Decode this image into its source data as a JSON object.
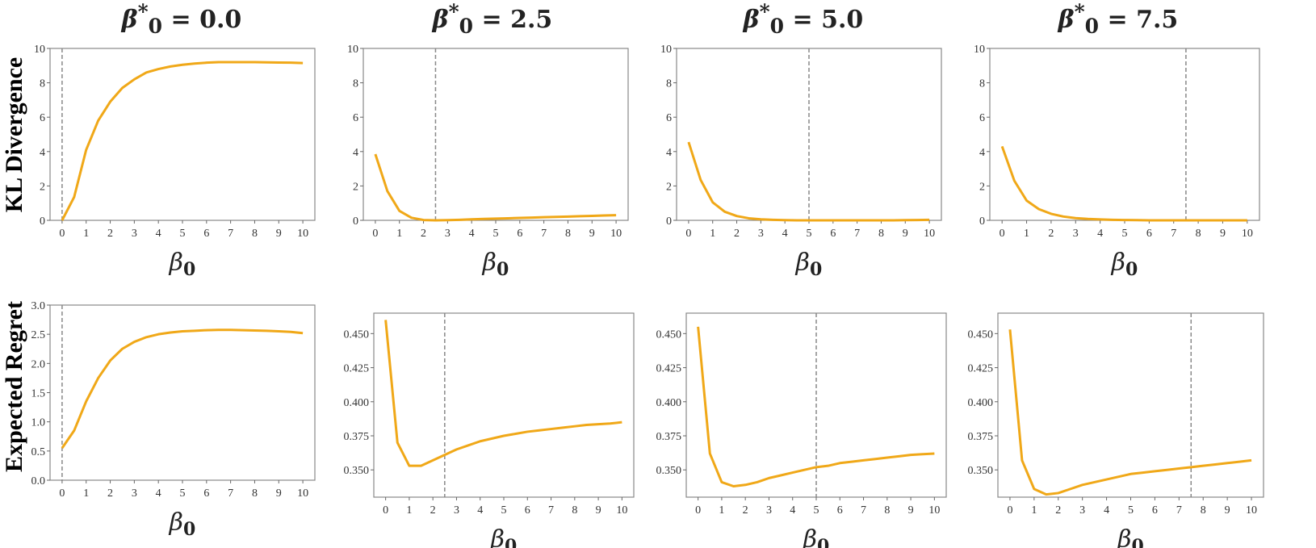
{
  "columns": [
    {
      "title_symbol": "β",
      "title_sub": "0",
      "title_sup": "*",
      "title_value": "= 0.0"
    },
    {
      "title_symbol": "β",
      "title_sub": "0",
      "title_sup": "*",
      "title_value": "= 2.5"
    },
    {
      "title_symbol": "β",
      "title_sub": "0",
      "title_sup": "*",
      "title_value": "= 5.0"
    },
    {
      "title_symbol": "β",
      "title_sub": "0",
      "title_sup": "*",
      "title_value": "= 7.5"
    }
  ],
  "rows": [
    {
      "label": "KL Divergence"
    },
    {
      "label": "Expected Regret"
    }
  ],
  "chart_data": [
    {
      "type": "line",
      "row": 0,
      "col": 0,
      "true_beta0": 0.0,
      "xlabel": "β0",
      "ylabel": "KL Divergence",
      "xlim": [
        -0.5,
        10.5
      ],
      "ylim": [
        0,
        10
      ],
      "xticks": [
        "0",
        "1",
        "2",
        "3",
        "4",
        "5",
        "6",
        "7",
        "8",
        "9",
        "10"
      ],
      "yticks": [
        "0",
        "2",
        "4",
        "6",
        "8",
        "10"
      ],
      "ytick_values": [
        0,
        2,
        4,
        6,
        8,
        10
      ],
      "color": "#f0a818",
      "x": [
        0,
        0.5,
        1,
        1.5,
        2,
        2.5,
        3,
        3.5,
        4,
        4.5,
        5,
        5.5,
        6,
        6.5,
        7,
        7.5,
        8,
        8.5,
        9,
        9.5,
        10
      ],
      "y": [
        0,
        1.35,
        4.1,
        5.8,
        6.9,
        7.7,
        8.2,
        8.6,
        8.8,
        8.95,
        9.05,
        9.12,
        9.17,
        9.2,
        9.2,
        9.2,
        9.2,
        9.19,
        9.18,
        9.17,
        9.15
      ]
    },
    {
      "type": "line",
      "row": 0,
      "col": 1,
      "true_beta0": 2.5,
      "xlabel": "β0",
      "ylabel": "",
      "xlim": [
        -0.5,
        10.5
      ],
      "ylim": [
        0,
        10
      ],
      "xticks": [
        "0",
        "1",
        "2",
        "3",
        "4",
        "5",
        "6",
        "7",
        "8",
        "9",
        "10"
      ],
      "yticks": [
        "0",
        "2",
        "4",
        "6",
        "8",
        "10"
      ],
      "ytick_values": [
        0,
        2,
        4,
        6,
        8,
        10
      ],
      "color": "#f0a818",
      "x": [
        0,
        0.5,
        1,
        1.5,
        2,
        2.5,
        3,
        3.5,
        4,
        4.5,
        5,
        5.5,
        6,
        6.5,
        7,
        7.5,
        8,
        8.5,
        9,
        9.5,
        10
      ],
      "y": [
        3.85,
        1.7,
        0.55,
        0.15,
        0.02,
        0,
        0.01,
        0.03,
        0.06,
        0.08,
        0.1,
        0.12,
        0.14,
        0.16,
        0.18,
        0.2,
        0.22,
        0.24,
        0.26,
        0.28,
        0.3
      ]
    },
    {
      "type": "line",
      "row": 0,
      "col": 2,
      "true_beta0": 5.0,
      "xlabel": "β0",
      "ylabel": "",
      "xlim": [
        -0.5,
        10.5
      ],
      "ylim": [
        0,
        10
      ],
      "xticks": [
        "0",
        "1",
        "2",
        "3",
        "4",
        "5",
        "6",
        "7",
        "8",
        "9",
        "10"
      ],
      "yticks": [
        "0",
        "2",
        "4",
        "6",
        "8",
        "10"
      ],
      "ytick_values": [
        0,
        2,
        4,
        6,
        8,
        10
      ],
      "color": "#f0a818",
      "x": [
        0,
        0.5,
        1,
        1.5,
        2,
        2.5,
        3,
        3.5,
        4,
        4.5,
        5,
        5.5,
        6,
        6.5,
        7,
        7.5,
        8,
        8.5,
        9,
        9.5,
        10
      ],
      "y": [
        4.55,
        2.35,
        1.05,
        0.5,
        0.25,
        0.12,
        0.06,
        0.03,
        0.01,
        0,
        0,
        0,
        0,
        0,
        0,
        0,
        0,
        0,
        0.01,
        0.02,
        0.03
      ]
    },
    {
      "type": "line",
      "row": 0,
      "col": 3,
      "true_beta0": 7.5,
      "xlabel": "β0",
      "ylabel": "",
      "xlim": [
        -0.5,
        10.5
      ],
      "ylim": [
        0,
        10
      ],
      "xticks": [
        "0",
        "1",
        "2",
        "3",
        "4",
        "5",
        "6",
        "7",
        "8",
        "9",
        "10"
      ],
      "yticks": [
        "0",
        "2",
        "4",
        "6",
        "8",
        "10"
      ],
      "ytick_values": [
        0,
        2,
        4,
        6,
        8,
        10
      ],
      "color": "#f0a818",
      "x": [
        0,
        0.5,
        1,
        1.5,
        2,
        2.5,
        3,
        3.5,
        4,
        4.5,
        5,
        5.5,
        6,
        6.5,
        7,
        7.5,
        8,
        8.5,
        9,
        9.5,
        10
      ],
      "y": [
        4.3,
        2.3,
        1.15,
        0.65,
        0.38,
        0.22,
        0.13,
        0.08,
        0.05,
        0.03,
        0.02,
        0.01,
        0,
        0,
        0,
        0,
        0,
        0,
        0,
        0,
        0
      ]
    },
    {
      "type": "line",
      "row": 1,
      "col": 0,
      "true_beta0": 0.0,
      "xlabel": "β0",
      "ylabel": "Expected Regret",
      "xlim": [
        -0.5,
        10.5
      ],
      "ylim": [
        0,
        3
      ],
      "xticks": [
        "0",
        "1",
        "2",
        "3",
        "4",
        "5",
        "6",
        "7",
        "8",
        "9",
        "10"
      ],
      "yticks": [
        "0.0",
        "0.5",
        "1.0",
        "1.5",
        "2.0",
        "2.5",
        "3.0"
      ],
      "ytick_values": [
        0,
        0.5,
        1,
        1.5,
        2,
        2.5,
        3
      ],
      "color": "#f0a818",
      "x": [
        0,
        0.5,
        1,
        1.5,
        2,
        2.5,
        3,
        3.5,
        4,
        4.5,
        5,
        5.5,
        6,
        6.5,
        7,
        7.5,
        8,
        8.5,
        9,
        9.5,
        10
      ],
      "y": [
        0.55,
        0.85,
        1.35,
        1.75,
        2.05,
        2.25,
        2.37,
        2.45,
        2.5,
        2.53,
        2.55,
        2.56,
        2.57,
        2.575,
        2.575,
        2.57,
        2.565,
        2.56,
        2.55,
        2.54,
        2.52
      ]
    },
    {
      "type": "line",
      "row": 1,
      "col": 1,
      "true_beta0": 2.5,
      "xlabel": "β0",
      "ylabel": "",
      "xlim": [
        -0.5,
        10.5
      ],
      "ylim": [
        0.33,
        0.465
      ],
      "xticks": [
        "0",
        "1",
        "2",
        "3",
        "4",
        "5",
        "6",
        "7",
        "8",
        "9",
        "10"
      ],
      "yticks": [
        "0.350",
        "0.375",
        "0.400",
        "0.425",
        "0.450"
      ],
      "ytick_values": [
        0.35,
        0.375,
        0.4,
        0.425,
        0.45
      ],
      "color": "#f0a818",
      "x": [
        0,
        0.5,
        1,
        1.5,
        2,
        2.5,
        3,
        3.5,
        4,
        4.5,
        5,
        5.5,
        6,
        6.5,
        7,
        7.5,
        8,
        8.5,
        9,
        9.5,
        10
      ],
      "y": [
        0.46,
        0.37,
        0.353,
        0.353,
        0.357,
        0.361,
        0.365,
        0.368,
        0.371,
        0.373,
        0.375,
        0.3765,
        0.378,
        0.379,
        0.38,
        0.381,
        0.382,
        0.383,
        0.3835,
        0.384,
        0.385
      ]
    },
    {
      "type": "line",
      "row": 1,
      "col": 2,
      "true_beta0": 5.0,
      "xlabel": "β0",
      "ylabel": "",
      "xlim": [
        -0.5,
        10.5
      ],
      "ylim": [
        0.33,
        0.465
      ],
      "xticks": [
        "0",
        "1",
        "2",
        "3",
        "4",
        "5",
        "6",
        "7",
        "8",
        "9",
        "10"
      ],
      "yticks": [
        "0.350",
        "0.375",
        "0.400",
        "0.425",
        "0.450"
      ],
      "ytick_values": [
        0.35,
        0.375,
        0.4,
        0.425,
        0.45
      ],
      "color": "#f0a818",
      "x": [
        0,
        0.5,
        1,
        1.5,
        2,
        2.5,
        3,
        3.5,
        4,
        4.5,
        5,
        5.5,
        6,
        6.5,
        7,
        7.5,
        8,
        8.5,
        9,
        9.5,
        10
      ],
      "y": [
        0.455,
        0.362,
        0.341,
        0.338,
        0.339,
        0.341,
        0.344,
        0.346,
        0.348,
        0.35,
        0.352,
        0.353,
        0.355,
        0.356,
        0.357,
        0.358,
        0.359,
        0.36,
        0.361,
        0.3615,
        0.362
      ]
    },
    {
      "type": "line",
      "row": 1,
      "col": 3,
      "true_beta0": 7.5,
      "xlabel": "β0",
      "ylabel": "",
      "xlim": [
        -0.5,
        10.5
      ],
      "ylim": [
        0.33,
        0.465
      ],
      "xticks": [
        "0",
        "1",
        "2",
        "3",
        "4",
        "5",
        "6",
        "7",
        "8",
        "9",
        "10"
      ],
      "yticks": [
        "0.350",
        "0.375",
        "0.400",
        "0.425",
        "0.450"
      ],
      "ytick_values": [
        0.35,
        0.375,
        0.4,
        0.425,
        0.45
      ],
      "color": "#f0a818",
      "x": [
        0,
        0.5,
        1,
        1.5,
        2,
        2.5,
        3,
        3.5,
        4,
        4.5,
        5,
        5.5,
        6,
        6.5,
        7,
        7.5,
        8,
        8.5,
        9,
        9.5,
        10
      ],
      "y": [
        0.453,
        0.357,
        0.336,
        0.332,
        0.333,
        0.336,
        0.339,
        0.341,
        0.343,
        0.345,
        0.347,
        0.348,
        0.349,
        0.35,
        0.351,
        0.352,
        0.353,
        0.354,
        0.355,
        0.356,
        0.357
      ]
    }
  ]
}
